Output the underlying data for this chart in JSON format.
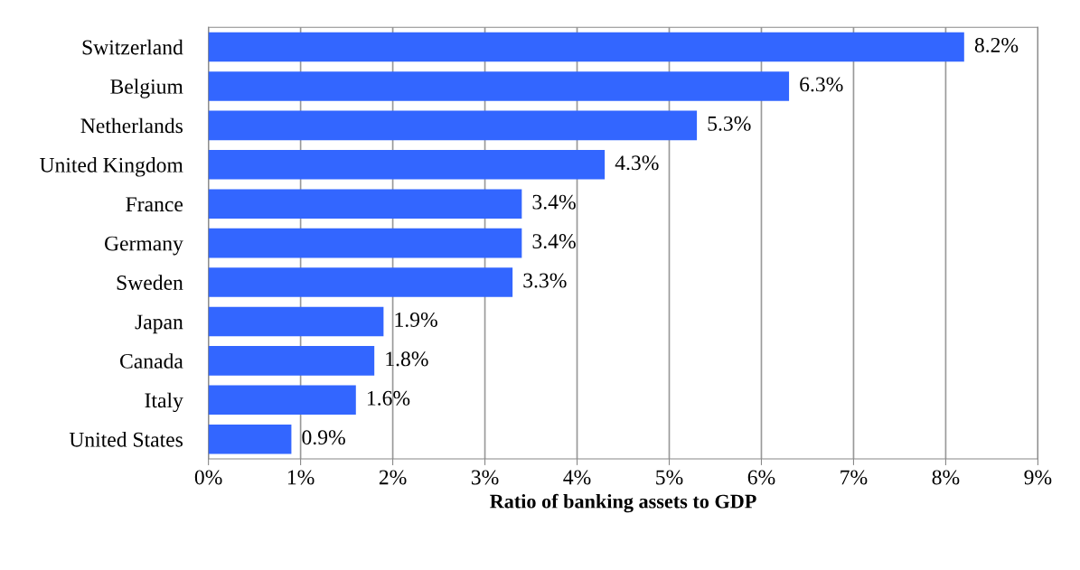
{
  "chart_data": {
    "type": "bar",
    "orientation": "horizontal",
    "xlabel": "Ratio of banking assets to GDP",
    "categories": [
      "Switzerland",
      "Belgium",
      "Netherlands",
      "United Kingdom",
      "France",
      "Germany",
      "Sweden",
      "Japan",
      "Canada",
      "Italy",
      "United States"
    ],
    "values": [
      8.2,
      6.3,
      5.3,
      4.3,
      3.4,
      3.4,
      3.3,
      1.9,
      1.8,
      1.6,
      0.9
    ],
    "value_labels": [
      "8.2%",
      "6.3%",
      "5.3%",
      "4.3%",
      "3.4%",
      "3.4%",
      "3.3%",
      "1.9%",
      "1.8%",
      "1.6%",
      "0.9%"
    ],
    "color": "#3366ff",
    "xlim": [
      0,
      9
    ],
    "xticks": [
      {
        "value": 0,
        "label": "0%"
      },
      {
        "value": 1,
        "label": "1%"
      },
      {
        "value": 2,
        "label": "2%"
      },
      {
        "value": 3,
        "label": "3%"
      },
      {
        "value": 4,
        "label": "4%"
      },
      {
        "value": 5,
        "label": "5%"
      },
      {
        "value": 6,
        "label": "6%"
      },
      {
        "value": 7,
        "label": "7%"
      },
      {
        "value": 8,
        "label": "8%"
      },
      {
        "value": 9,
        "label": "9%"
      }
    ],
    "grid": "x"
  }
}
